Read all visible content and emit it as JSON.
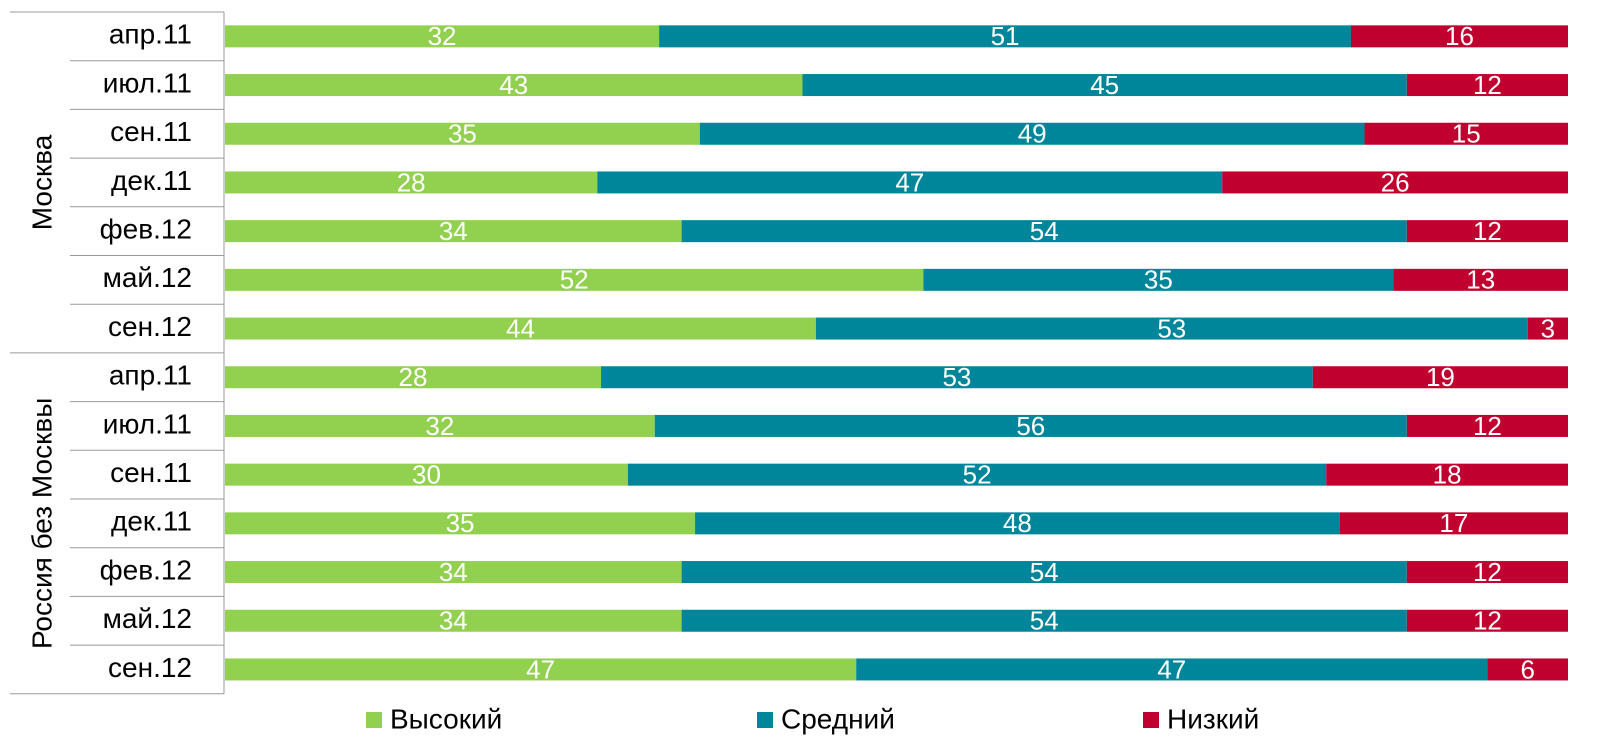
{
  "chart_data": {
    "type": "bar",
    "orientation": "horizontal",
    "stacking": "percent",
    "groups": [
      {
        "label": "Москва",
        "categories": [
          "апр.11",
          "июл.11",
          "сен.11",
          "дек.11",
          "фев.12",
          "май.12",
          "сен.12"
        ]
      },
      {
        "label": "Россия без Москвы",
        "categories": [
          "апр.11",
          "июл.11",
          "сен.11",
          "дек.11",
          "фев.12",
          "май.12",
          "сен.12"
        ]
      }
    ],
    "series": [
      {
        "name": "Высокий",
        "color": "#92d050",
        "values": [
          32,
          43,
          35,
          28,
          34,
          52,
          44,
          28,
          32,
          30,
          35,
          34,
          34,
          47
        ]
      },
      {
        "name": "Средний",
        "color": "#00869a",
        "values": [
          51,
          45,
          49,
          47,
          54,
          35,
          53,
          53,
          56,
          52,
          48,
          54,
          54,
          47
        ]
      },
      {
        "name": "Низкий",
        "color": "#c0002f",
        "values": [
          16,
          12,
          15,
          26,
          12,
          13,
          3,
          19,
          12,
          18,
          17,
          12,
          12,
          6
        ]
      }
    ],
    "legend": "bottom"
  }
}
